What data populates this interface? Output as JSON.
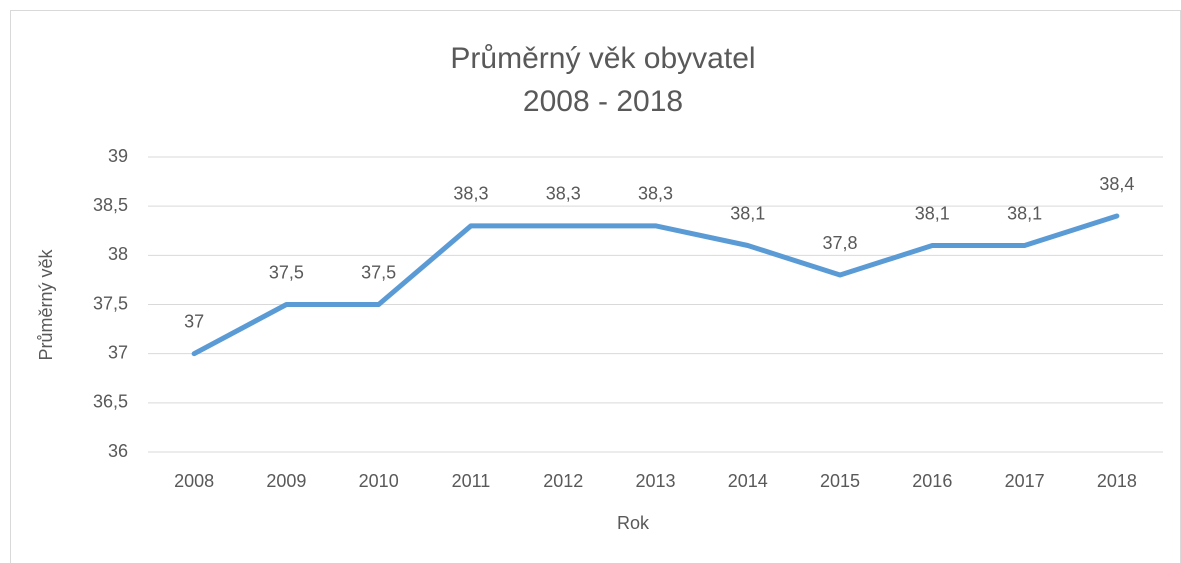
{
  "chart_data": {
    "type": "line",
    "title": "Průměrný věk obyvatel",
    "subtitle": "2008 - 2018",
    "x_label": "Rok",
    "y_label": "Průměrný věk",
    "categories": [
      "2008",
      "2009",
      "2010",
      "2011",
      "2012",
      "2013",
      "2014",
      "2015",
      "2016",
      "2017",
      "2018"
    ],
    "values": [
      37,
      37.5,
      37.5,
      38.3,
      38.3,
      38.3,
      38.1,
      37.8,
      38.1,
      38.1,
      38.4
    ],
    "value_labels": [
      "37",
      "37,5",
      "37,5",
      "38,3",
      "38,3",
      "38,3",
      "38,1",
      "37,8",
      "38,1",
      "38,1",
      "38,4"
    ],
    "color": "#5b9bd5",
    "ylim": [
      36,
      39
    ],
    "yticks": [
      36,
      {
        "value": 36.5,
        "label": "36,5"
      },
      37,
      {
        "value": 37.5,
        "label": "37,5"
      },
      38,
      {
        "value": 38.5,
        "label": "38,5"
      },
      39
    ],
    "grid": true
  }
}
